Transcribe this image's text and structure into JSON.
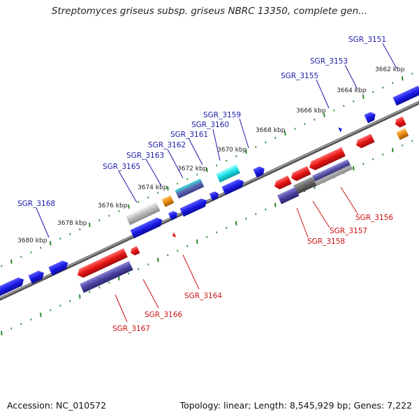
{
  "title": "Streptomyces griseus subsp. griseus NBRC 13350, complete gen...",
  "footer": {
    "accession": "Accession: NC_010572",
    "summary": "Topology: linear; Length: 8,545,929 bp; Genes: 7,222"
  },
  "colors": {
    "forward_gene": "#1515e0",
    "reverse_gene": "#e21212",
    "forward_label": "#1a1aa8",
    "reverse_label": "#cc1111",
    "dot_track": "#2a8a2a",
    "backbone": "#777777",
    "orange_gene": "#e88a10",
    "cyan_gene": "#19e0e6",
    "purple_gene": "#4a43a0",
    "gray_gene": "#b4b4b4",
    "dark_gray_gene": "#666666"
  },
  "kbp_ticks": [
    "3662 kbp",
    "3664 kbp",
    "3666 kbp",
    "3668 kbp",
    "3670 kbp",
    "3672 kbp",
    "3674 kbp",
    "3676 kbp",
    "3678 kbp",
    "3680 kbp"
  ],
  "upper_labels": [
    "SGR_3151",
    "SGR_3153",
    "SGR_3155",
    "SGR_3159",
    "SGR_3160",
    "SGR_3161",
    "SGR_3162",
    "SGR_3163",
    "SGR_3165",
    "SGR_3168"
  ],
  "lower_labels": [
    "SGR_3156",
    "SGR_3157",
    "SGR_3158",
    "SGR_3164",
    "SGR_3166",
    "SGR_3167"
  ]
}
